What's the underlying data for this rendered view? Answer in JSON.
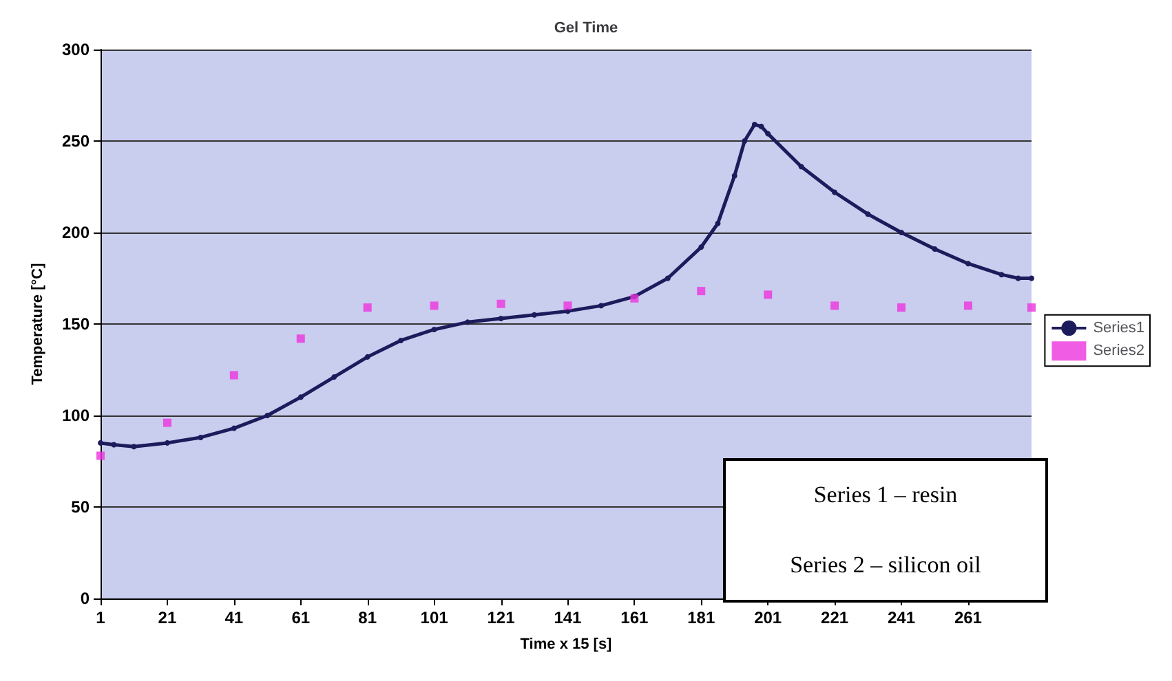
{
  "chart_data": {
    "type": "line",
    "title": "Gel Time",
    "xlabel": "Time x 15 [s]",
    "ylabel": "Temperature [°C]",
    "xlim": [
      1,
      280
    ],
    "xticks": [
      1,
      21,
      41,
      61,
      81,
      101,
      121,
      141,
      161,
      181,
      201,
      221,
      241,
      261
    ],
    "ylim": [
      0,
      300
    ],
    "yticks": [
      0,
      50,
      100,
      150,
      200,
      250,
      300
    ],
    "grid": "y",
    "legend": "right",
    "annotations": [
      "Series 1 – resin",
      "Series 2 – silicon oil"
    ],
    "series": [
      {
        "name": "Series1",
        "color": "#1c1c5c",
        "marker": "circle",
        "x": [
          1,
          5,
          11,
          21,
          31,
          41,
          51,
          61,
          71,
          81,
          91,
          101,
          111,
          121,
          131,
          141,
          151,
          161,
          171,
          181,
          186,
          191,
          194,
          197,
          199,
          201,
          211,
          221,
          231,
          241,
          251,
          261,
          271,
          276,
          280
        ],
        "values": [
          85,
          84,
          83,
          85,
          88,
          93,
          100,
          110,
          121,
          132,
          141,
          147,
          151,
          153,
          155,
          157,
          160,
          165,
          175,
          192,
          205,
          231,
          250,
          259,
          258,
          254,
          236,
          222,
          210,
          200,
          191,
          183,
          177,
          175,
          175
        ]
      },
      {
        "name": "Series2",
        "color": "#ee33dd",
        "type": "scatter",
        "marker": "square",
        "x": [
          1,
          21,
          41,
          61,
          81,
          101,
          121,
          141,
          161,
          181,
          201,
          221,
          241,
          261,
          280
        ],
        "values": [
          78,
          96,
          122,
          142,
          159,
          160,
          161,
          160,
          164,
          168,
          166,
          160,
          159,
          160,
          159
        ]
      }
    ]
  }
}
